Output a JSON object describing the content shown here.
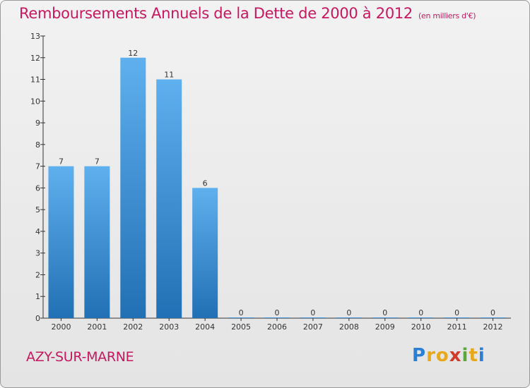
{
  "chart_data": {
    "type": "bar",
    "title": "Remboursements Annuels de la Dette de 2000 à 2012",
    "subtitle": "(en milliers d'€)",
    "categories": [
      "2000",
      "2001",
      "2002",
      "2003",
      "2004",
      "2005",
      "2006",
      "2007",
      "2008",
      "2009",
      "2010",
      "2011",
      "2012"
    ],
    "values": [
      7,
      7,
      12,
      11,
      6,
      0,
      0,
      0,
      0,
      0,
      0,
      0,
      0
    ],
    "ylim": [
      0,
      13
    ],
    "yticks": [
      0,
      1,
      2,
      3,
      4,
      5,
      6,
      7,
      8,
      9,
      10,
      11,
      12,
      13
    ],
    "xlabel": "",
    "ylabel": "",
    "bar_color": "#3d8fd6"
  },
  "footer": {
    "town": "AZY-SUR-MARNE",
    "brand_letters": [
      "P",
      "r",
      "o",
      "x",
      "i",
      "t",
      "i"
    ],
    "brand_colors": [
      "#2a7fd4",
      "#e8a81c",
      "#e8a81c",
      "#d23a2a",
      "#5aa83a",
      "#e8a81c",
      "#2a7fd4"
    ]
  }
}
